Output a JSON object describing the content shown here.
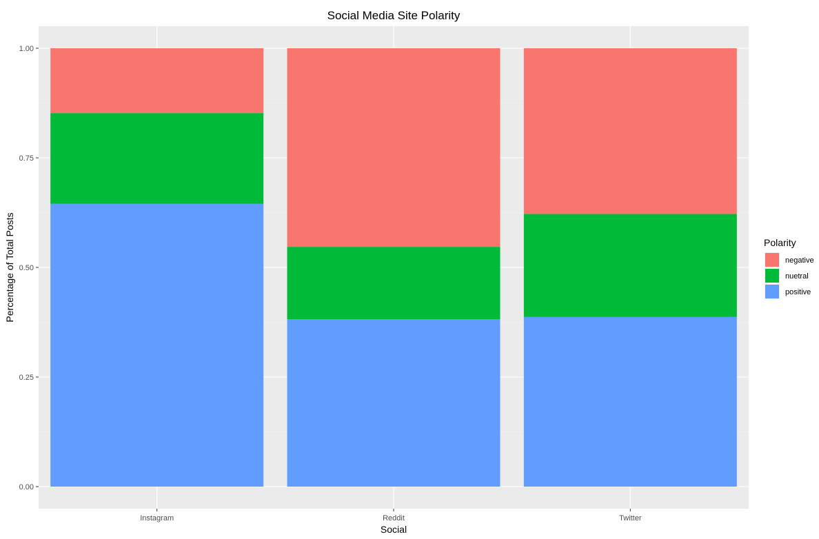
{
  "chart_data": {
    "type": "bar",
    "stacked": true,
    "normalized": true,
    "title": "Social Media Site Polarity",
    "xlabel": "Social",
    "ylabel": "Percentage of Total Posts",
    "categories": [
      "Instagram",
      "Reddit",
      "Twitter"
    ],
    "ylim": [
      0,
      1
    ],
    "yticks": [
      "0.00",
      "0.25",
      "0.50",
      "0.75",
      "1.00"
    ],
    "grid": true,
    "legend": {
      "title": "Polarity",
      "position": "right"
    },
    "series": [
      {
        "name": "positive",
        "color": "#619CFF",
        "values": [
          0.645,
          0.382,
          0.387
        ]
      },
      {
        "name": "nuetral",
        "color": "#00BA38",
        "values": [
          0.207,
          0.165,
          0.235
        ]
      },
      {
        "name": "negative",
        "color": "#F8766D",
        "values": [
          0.148,
          0.453,
          0.378
        ]
      }
    ],
    "legend_order": [
      "negative",
      "nuetral",
      "positive"
    ]
  }
}
